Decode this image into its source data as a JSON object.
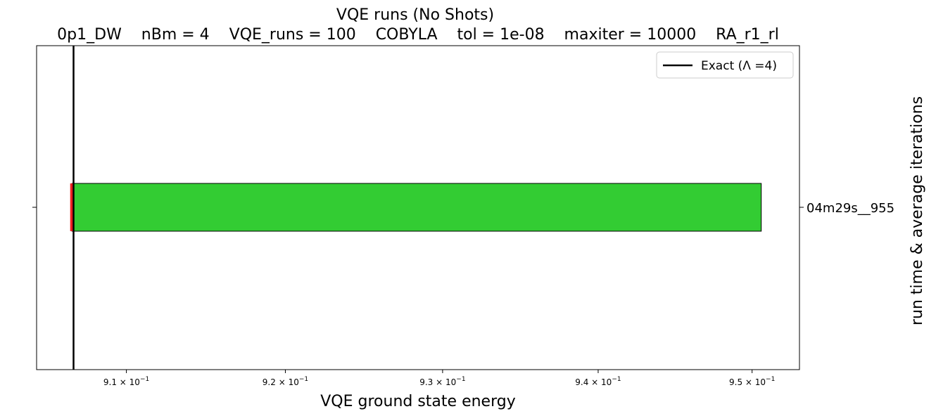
{
  "chart_data": {
    "type": "bar",
    "orientation": "horizontal",
    "title": "VQE runs (No Shots)",
    "subtitle": "0p1_DW    nBm = 4    VQE_runs = 100    COBYLA    tol = 1e-08    maxiter = 10000    RA_r1_rl",
    "xlabel": "VQE ground state energy",
    "ylabel": "run time & average iterations",
    "x_scale": "log",
    "xlim": [
      0.9044,
      0.9531
    ],
    "x_ticks": [
      {
        "value": 0.91,
        "mantissa": "9.1",
        "base": "10",
        "exponent": "−1"
      },
      {
        "value": 0.92,
        "mantissa": "9.2",
        "base": "10",
        "exponent": "−1"
      },
      {
        "value": 0.93,
        "mantissa": "9.3",
        "base": "10",
        "exponent": "−1"
      },
      {
        "value": 0.94,
        "mantissa": "9.4",
        "base": "10",
        "exponent": "−1"
      },
      {
        "value": 0.95,
        "mantissa": "9.5",
        "base": "10",
        "exponent": "−1"
      }
    ],
    "categories": [
      "04m29s__955"
    ],
    "bars": [
      {
        "category": "04m29s__955",
        "start": 0.9066,
        "end": 0.9506,
        "color": "#33cc33",
        "edge": "#000000"
      }
    ],
    "min_marker": {
      "value": 0.9066,
      "color": "#ee2222"
    },
    "exact_line": {
      "value": 0.9067,
      "color": "#000000"
    },
    "legend": {
      "position": "top-right",
      "entries": [
        {
          "label": "Exact (Λ =4)",
          "color": "#000000"
        }
      ]
    },
    "grid": false
  }
}
